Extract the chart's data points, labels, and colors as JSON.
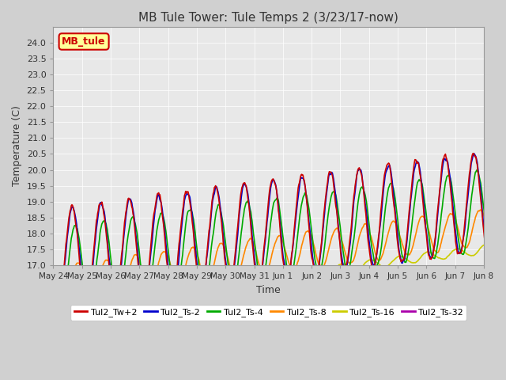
{
  "title": "MB Tule Tower: Tule Temps 2 (3/23/17-now)",
  "xlabel": "Time",
  "ylabel": "Temperature (C)",
  "ylim": [
    17.0,
    24.5
  ],
  "yticks": [
    17.0,
    17.5,
    18.0,
    18.5,
    19.0,
    19.5,
    20.0,
    20.5,
    21.0,
    21.5,
    22.0,
    22.5,
    23.0,
    23.5,
    24.0
  ],
  "bg_color": "#e8e8e8",
  "legend_label": "MB_tule",
  "legend_box_color": "#ffff99",
  "legend_box_border": "#cc0000",
  "series_labels": [
    "Tul2_Tw+2",
    "Tul2_Ts-2",
    "Tul2_Ts-4",
    "Tul2_Ts-8",
    "Tul2_Ts-16",
    "Tul2_Ts-32"
  ],
  "series_colors": [
    "#cc0000",
    "#0000cc",
    "#00aa00",
    "#ff8800",
    "#cccc00",
    "#aa00aa"
  ],
  "n_days": 16,
  "day_labels": [
    "May 24",
    "May 25",
    "May 26",
    "May 27",
    "May 28",
    "May 29",
    "May 30",
    "May 31",
    "Jun 1",
    "Jun 2",
    "Jun 3",
    "Jun 4",
    "Jun 5",
    "Jun 6",
    "Jun 7",
    "Jun 8"
  ]
}
